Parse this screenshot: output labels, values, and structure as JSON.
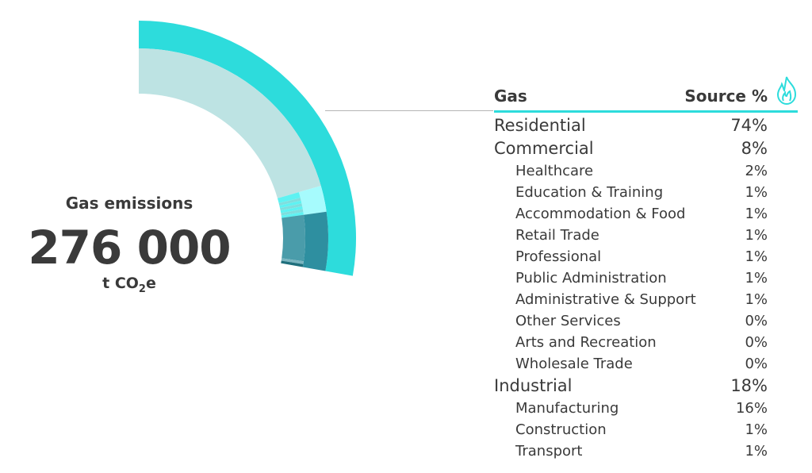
{
  "summary": {
    "label": "Gas emissions",
    "value": "276 000",
    "unit_prefix": "t CO",
    "unit_sub": "2",
    "unit_suffix": "e"
  },
  "table": {
    "col_name": "Gas",
    "col_value": "Source %",
    "icon": "flame-icon",
    "accent": "#2ddcdc"
  },
  "chart_data": {
    "type": "sunburst",
    "total": {
      "name": "Gas",
      "value": 100,
      "color": "#2ddcdc"
    },
    "sectors": [
      {
        "name": "Residential",
        "value": 74,
        "color": "#bde3e3",
        "sub_color": "#bde3e3",
        "subsectors": []
      },
      {
        "name": "Commercial",
        "value": 8,
        "color": "#a6fbfd",
        "sub_colors": [
          "#5ef2f2",
          "#7fdede"
        ],
        "subsectors": [
          {
            "name": "Healthcare",
            "value": 2
          },
          {
            "name": "Education & Training",
            "value": 1
          },
          {
            "name": "Accommodation & Food",
            "value": 1
          },
          {
            "name": "Retail Trade",
            "value": 1
          },
          {
            "name": "Professional",
            "value": 1
          },
          {
            "name": "Public Administration",
            "value": 1
          },
          {
            "name": "Administrative & Support",
            "value": 1
          },
          {
            "name": "Other Services",
            "value": 0
          },
          {
            "name": "Arts and Recreation",
            "value": 0
          },
          {
            "name": "Wholesale Trade",
            "value": 0
          }
        ]
      },
      {
        "name": "Industrial",
        "value": 18,
        "color": "#2e8fa0",
        "sub_colors": [
          "#4a9caa",
          "#7ab5c0",
          "#1f6f7c"
        ],
        "subsectors": [
          {
            "name": "Manufacturing",
            "value": 16
          },
          {
            "name": "Construction",
            "value": 1
          },
          {
            "name": "Transport",
            "value": 1
          }
        ]
      }
    ]
  }
}
